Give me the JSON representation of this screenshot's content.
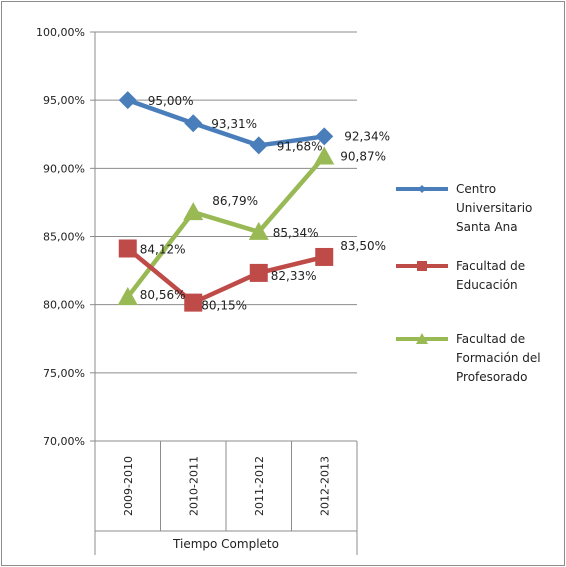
{
  "chart_data": {
    "type": "line",
    "categories": [
      "2009-2010",
      "2010-2011",
      "2011-2012",
      "2012-2013"
    ],
    "category_group_label": "Tiempo Completo",
    "y_ticks": [
      "70,00%",
      "75,00%",
      "80,00%",
      "85,00%",
      "90,00%",
      "95,00%",
      "100,00%"
    ],
    "ylim": [
      70,
      100
    ],
    "grid": true,
    "legend_position": "right",
    "series": [
      {
        "name": "Centro Universitario Santa Ana",
        "legend_lines": [
          "Centro",
          "Universitario",
          "Santa Ana"
        ],
        "color": "#4a7ebb",
        "marker": "diamond",
        "values": [
          95.0,
          93.31,
          91.68,
          92.34
        ],
        "labels": [
          "95,00%",
          "93,31%",
          "91,68%",
          "92,34%"
        ]
      },
      {
        "name": "Facultad de Educación",
        "legend_lines": [
          "Facultad de",
          "Educación"
        ],
        "color": "#be4b48",
        "marker": "square",
        "values": [
          84.12,
          80.15,
          82.33,
          83.5
        ],
        "labels": [
          "84,12%",
          "80,15%",
          "82,33%",
          "83,50%"
        ]
      },
      {
        "name": "Facultad de Formación del Profesorado",
        "legend_lines": [
          "Facultad de",
          "Formación del",
          "Profesorado"
        ],
        "color": "#98b954",
        "marker": "triangle",
        "values": [
          80.56,
          86.79,
          85.34,
          90.87
        ],
        "labels": [
          "80,56%",
          "86,79%",
          "85,34%",
          "90,87%"
        ]
      }
    ]
  }
}
